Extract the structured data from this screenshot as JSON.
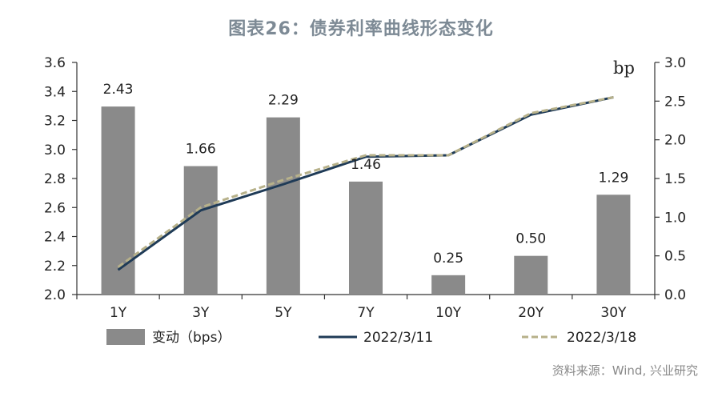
{
  "chart_data": {
    "type": "bar",
    "title": "图表26：债券利率曲线形态变化",
    "categories": [
      "1Y",
      "3Y",
      "5Y",
      "7Y",
      "10Y",
      "20Y",
      "30Y"
    ],
    "bar_series": {
      "name": "变动（bps）",
      "axis": "right",
      "values": [
        2.43,
        1.66,
        2.29,
        1.46,
        0.25,
        0.5,
        1.29
      ],
      "value_labels": [
        "2.43",
        "1.66",
        "2.29",
        "1.46",
        "0.25",
        "0.50",
        "1.29"
      ],
      "color": "#8a8a8a"
    },
    "line_series": [
      {
        "name": "2022/3/11",
        "axis": "left",
        "style": "solid",
        "color": "#1f3b57",
        "values": [
          2.17,
          2.58,
          2.76,
          2.95,
          2.96,
          3.24,
          3.36
        ]
      },
      {
        "name": "2022/3/18",
        "axis": "left",
        "style": "dashed",
        "color": "#b7b18a",
        "values": [
          2.19,
          2.6,
          2.79,
          2.96,
          2.96,
          3.25,
          3.36
        ]
      }
    ],
    "left_axis": {
      "ylim": [
        2.0,
        3.6
      ],
      "ticks": [
        "2.0",
        "2.2",
        "2.4",
        "2.6",
        "2.8",
        "3.0",
        "3.2",
        "3.4",
        "3.6"
      ]
    },
    "right_axis": {
      "unit": "bp",
      "ylim": [
        0.0,
        3.0
      ],
      "ticks": [
        "0.0",
        "0.5",
        "1.0",
        "1.5",
        "2.0",
        "2.5",
        "3.0"
      ]
    },
    "legend_placement": "bottom",
    "grid": false
  },
  "source_note": "资料来源：Wind, 兴业研究"
}
